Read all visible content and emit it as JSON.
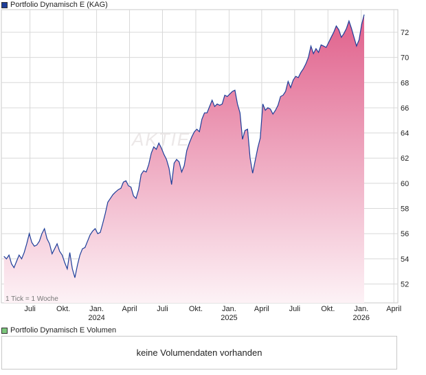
{
  "price_legend": {
    "label": "Portfolio Dynamisch E (KAG)",
    "color": "#1c3d99"
  },
  "volume_legend": {
    "label": "Portfolio Dynamisch E Volumen",
    "color": "#7cc77c"
  },
  "tick_note": "1 Tick = 1 Woche",
  "watermark": "AKTIEN",
  "volume_message": "keine Volumendaten vorhanden",
  "chart_data": {
    "type": "area",
    "x_axis": {
      "ticks": [
        {
          "label": "Juli",
          "sub": "",
          "date": "2023-07-01"
        },
        {
          "label": "Okt.",
          "sub": "",
          "date": "2023-10-01"
        },
        {
          "label": "Jan.",
          "sub": "2024",
          "date": "2024-01-01"
        },
        {
          "label": "April",
          "sub": "",
          "date": "2024-04-01"
        },
        {
          "label": "Juli",
          "sub": "",
          "date": "2024-07-01"
        },
        {
          "label": "Okt.",
          "sub": "",
          "date": "2024-10-01"
        },
        {
          "label": "Jan.",
          "sub": "2025",
          "date": "2025-01-01"
        },
        {
          "label": "April",
          "sub": "",
          "date": "2025-04-01"
        },
        {
          "label": "Juli",
          "sub": "",
          "date": "2025-07-01"
        },
        {
          "label": "Okt.",
          "sub": "",
          "date": "2025-10-01"
        },
        {
          "label": "Jan.",
          "sub": "2026",
          "date": "2026-01-01"
        },
        {
          "label": "April",
          "sub": "",
          "date": "2026-04-01"
        }
      ]
    },
    "y_axis": {
      "ticks": [
        52,
        54,
        56,
        58,
        60,
        62,
        64,
        66,
        68,
        70,
        72
      ],
      "ylim": [
        50.5,
        73.8
      ],
      "side": "right"
    },
    "grid": true,
    "colors": {
      "line": "#1c3d99",
      "fill_top": "#e0608b",
      "fill_bottom": "#fdf2f6",
      "grid": "#d8d8d8"
    },
    "series": [
      {
        "points": [
          [
            "2023-04-20",
            54.2
          ],
          [
            "2023-04-27",
            54.0
          ],
          [
            "2023-05-04",
            54.3
          ],
          [
            "2023-05-11",
            53.6
          ],
          [
            "2023-05-18",
            53.3
          ],
          [
            "2023-05-25",
            53.8
          ],
          [
            "2023-06-01",
            54.3
          ],
          [
            "2023-06-08",
            54.0
          ],
          [
            "2023-06-15",
            54.5
          ],
          [
            "2023-06-22",
            55.2
          ],
          [
            "2023-06-29",
            56.0
          ],
          [
            "2023-07-06",
            55.3
          ],
          [
            "2023-07-13",
            55.0
          ],
          [
            "2023-07-20",
            55.1
          ],
          [
            "2023-07-27",
            55.4
          ],
          [
            "2023-08-03",
            56.0
          ],
          [
            "2023-08-10",
            56.4
          ],
          [
            "2023-08-17",
            55.6
          ],
          [
            "2023-08-24",
            55.2
          ],
          [
            "2023-08-31",
            54.4
          ],
          [
            "2023-09-07",
            54.8
          ],
          [
            "2023-09-14",
            55.2
          ],
          [
            "2023-09-21",
            54.6
          ],
          [
            "2023-09-28",
            54.3
          ],
          [
            "2023-10-05",
            53.7
          ],
          [
            "2023-10-12",
            53.2
          ],
          [
            "2023-10-19",
            54.5
          ],
          [
            "2023-10-26",
            53.2
          ],
          [
            "2023-11-02",
            52.5
          ],
          [
            "2023-11-09",
            53.5
          ],
          [
            "2023-11-16",
            54.3
          ],
          [
            "2023-11-23",
            54.8
          ],
          [
            "2023-11-30",
            54.9
          ],
          [
            "2023-12-07",
            55.4
          ],
          [
            "2023-12-14",
            55.9
          ],
          [
            "2023-12-21",
            56.2
          ],
          [
            "2023-12-28",
            56.4
          ],
          [
            "2024-01-04",
            56.0
          ],
          [
            "2024-01-11",
            56.1
          ],
          [
            "2024-01-18",
            56.8
          ],
          [
            "2024-01-25",
            57.6
          ],
          [
            "2024-02-01",
            58.5
          ],
          [
            "2024-02-08",
            58.8
          ],
          [
            "2024-02-15",
            59.1
          ],
          [
            "2024-02-22",
            59.3
          ],
          [
            "2024-03-01",
            59.5
          ],
          [
            "2024-03-08",
            59.6
          ],
          [
            "2024-03-15",
            60.1
          ],
          [
            "2024-03-22",
            60.2
          ],
          [
            "2024-03-29",
            59.8
          ],
          [
            "2024-04-05",
            59.7
          ],
          [
            "2024-04-12",
            59.0
          ],
          [
            "2024-04-19",
            58.8
          ],
          [
            "2024-04-26",
            59.5
          ],
          [
            "2024-05-03",
            60.7
          ],
          [
            "2024-05-10",
            61.0
          ],
          [
            "2024-05-17",
            60.9
          ],
          [
            "2024-05-24",
            61.5
          ],
          [
            "2024-05-31",
            62.4
          ],
          [
            "2024-06-07",
            62.9
          ],
          [
            "2024-06-14",
            62.7
          ],
          [
            "2024-06-21",
            63.2
          ],
          [
            "2024-06-28",
            62.8
          ],
          [
            "2024-07-05",
            62.3
          ],
          [
            "2024-07-12",
            61.9
          ],
          [
            "2024-07-19",
            61.2
          ],
          [
            "2024-07-26",
            59.9
          ],
          [
            "2024-08-02",
            61.6
          ],
          [
            "2024-08-09",
            61.9
          ],
          [
            "2024-08-16",
            61.7
          ],
          [
            "2024-08-23",
            60.9
          ],
          [
            "2024-08-30",
            61.4
          ],
          [
            "2024-09-06",
            62.6
          ],
          [
            "2024-09-13",
            63.2
          ],
          [
            "2024-09-20",
            63.7
          ],
          [
            "2024-09-27",
            64.1
          ],
          [
            "2024-10-04",
            64.3
          ],
          [
            "2024-10-11",
            64.1
          ],
          [
            "2024-10-18",
            65.1
          ],
          [
            "2024-10-25",
            65.6
          ],
          [
            "2024-11-01",
            65.6
          ],
          [
            "2024-11-08",
            66.1
          ],
          [
            "2024-11-15",
            66.6
          ],
          [
            "2024-11-22",
            66.1
          ],
          [
            "2024-11-29",
            66.3
          ],
          [
            "2024-12-06",
            66.2
          ],
          [
            "2024-12-13",
            66.3
          ],
          [
            "2024-12-20",
            67.0
          ],
          [
            "2024-12-27",
            66.9
          ],
          [
            "2025-01-03",
            67.1
          ],
          [
            "2025-01-10",
            67.3
          ],
          [
            "2025-01-17",
            67.4
          ],
          [
            "2025-01-24",
            66.3
          ],
          [
            "2025-01-31",
            65.6
          ],
          [
            "2025-02-07",
            63.5
          ],
          [
            "2025-02-14",
            64.2
          ],
          [
            "2025-02-21",
            64.3
          ],
          [
            "2025-02-28",
            62.0
          ],
          [
            "2025-03-07",
            60.8
          ],
          [
            "2025-03-14",
            61.8
          ],
          [
            "2025-03-21",
            62.8
          ],
          [
            "2025-03-28",
            63.6
          ],
          [
            "2025-04-04",
            66.3
          ],
          [
            "2025-04-11",
            65.8
          ],
          [
            "2025-04-18",
            66.0
          ],
          [
            "2025-04-25",
            65.9
          ],
          [
            "2025-05-02",
            65.5
          ],
          [
            "2025-05-09",
            65.8
          ],
          [
            "2025-05-16",
            66.2
          ],
          [
            "2025-05-23",
            66.9
          ],
          [
            "2025-05-30",
            67.0
          ],
          [
            "2025-06-06",
            67.3
          ],
          [
            "2025-06-13",
            68.1
          ],
          [
            "2025-06-20",
            67.6
          ],
          [
            "2025-06-27",
            68.2
          ],
          [
            "2025-07-04",
            68.5
          ],
          [
            "2025-07-11",
            68.4
          ],
          [
            "2025-07-18",
            68.8
          ],
          [
            "2025-07-25",
            69.1
          ],
          [
            "2025-08-01",
            69.5
          ],
          [
            "2025-08-08",
            70.0
          ],
          [
            "2025-08-15",
            70.9
          ],
          [
            "2025-08-22",
            70.3
          ],
          [
            "2025-08-29",
            70.7
          ],
          [
            "2025-09-05",
            70.4
          ],
          [
            "2025-09-12",
            71.0
          ],
          [
            "2025-09-19",
            70.9
          ],
          [
            "2025-09-26",
            70.8
          ],
          [
            "2025-10-03",
            71.2
          ],
          [
            "2025-10-10",
            71.6
          ],
          [
            "2025-10-17",
            72.0
          ],
          [
            "2025-10-24",
            72.5
          ],
          [
            "2025-10-31",
            72.2
          ],
          [
            "2025-11-07",
            71.6
          ],
          [
            "2025-11-14",
            71.9
          ],
          [
            "2025-11-21",
            72.3
          ],
          [
            "2025-11-28",
            72.9
          ],
          [
            "2025-12-05",
            72.3
          ],
          [
            "2025-12-12",
            71.6
          ],
          [
            "2025-12-19",
            70.9
          ],
          [
            "2025-12-26",
            71.4
          ],
          [
            "2026-01-02",
            72.6
          ],
          [
            "2026-01-09",
            73.4
          ]
        ]
      }
    ]
  }
}
